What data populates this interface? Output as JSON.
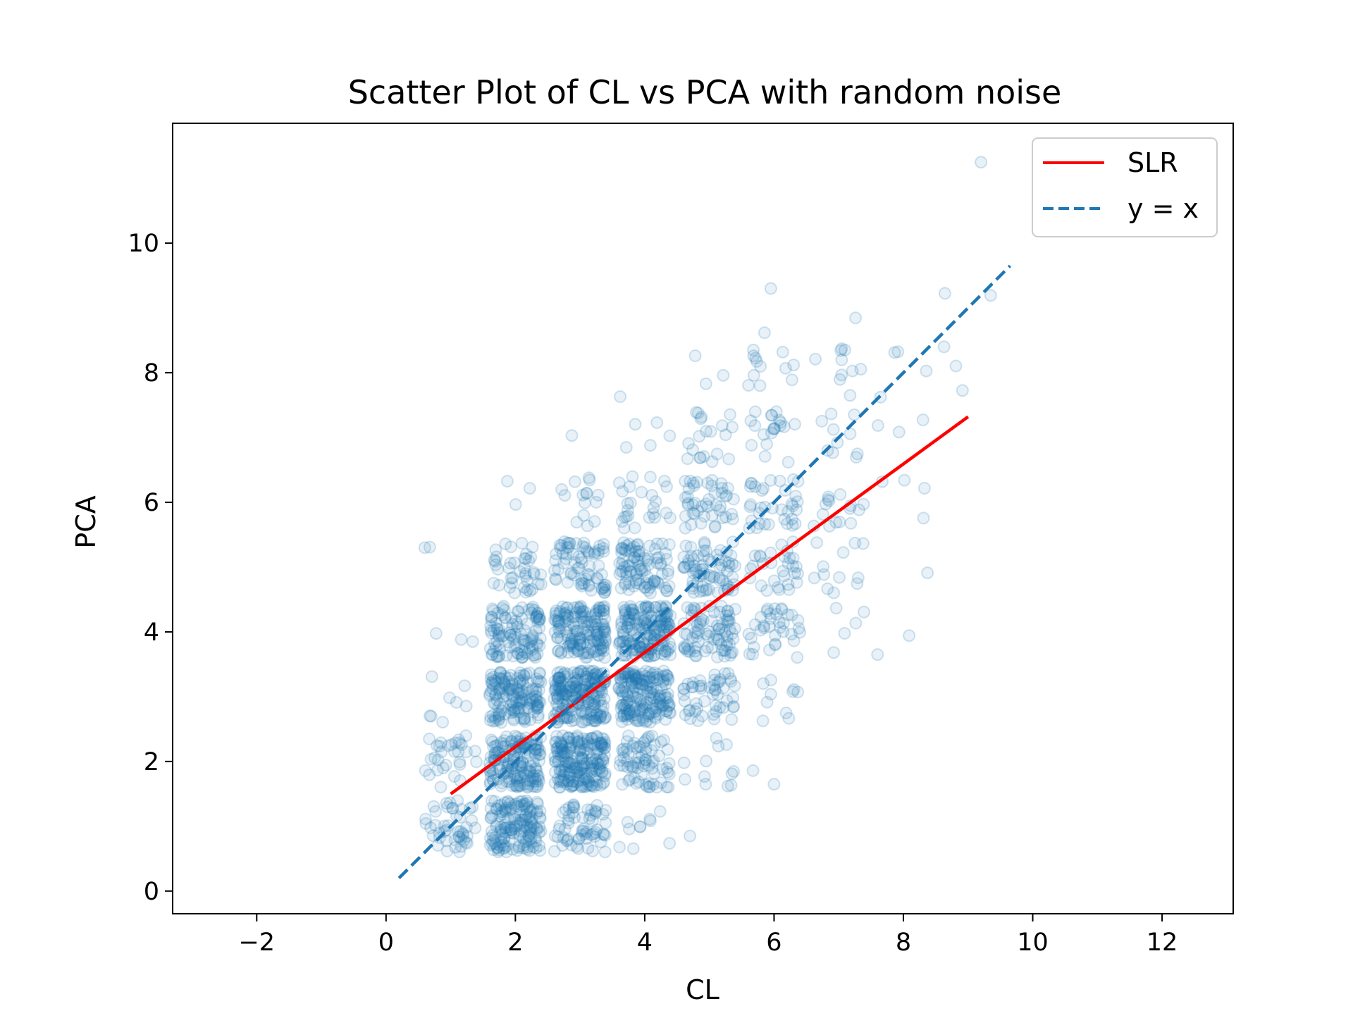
{
  "chart_data": {
    "type": "scatter",
    "title": "Scatter Plot of CL vs PCA with random noise",
    "xlabel": "CL",
    "ylabel": "PCA",
    "xlim": [
      -3.3,
      13.1
    ],
    "ylim": [
      -0.35,
      11.85
    ],
    "xticks": [
      -2,
      0,
      2,
      4,
      6,
      8,
      10,
      12
    ],
    "yticks": [
      0,
      2,
      4,
      6,
      8,
      10
    ],
    "xtick_labels": [
      "−2",
      "0",
      "2",
      "4",
      "6",
      "8",
      "10",
      "12"
    ],
    "ytick_labels": [
      "0",
      "2",
      "4",
      "6",
      "8",
      "10"
    ],
    "grid": false,
    "legend": {
      "position": "top-right",
      "entries": [
        "SLR",
        "y = x"
      ]
    },
    "colors": {
      "points": "#1f77b4",
      "slr": "#ff0000",
      "identity": "#1f77b4"
    },
    "scatter_note": "CL and PCA integer pairs with uniform jitter of about ±0.4; point counts per integer cell estimated from visual density",
    "clusters": [
      {
        "cl": 1,
        "pca": 1,
        "count": 45
      },
      {
        "cl": 1,
        "pca": 2,
        "count": 30
      },
      {
        "cl": 1,
        "pca": 3,
        "count": 8
      },
      {
        "cl": 1,
        "pca": 4,
        "count": 3
      },
      {
        "cl": 1,
        "pca": 5,
        "count": 1
      },
      {
        "cl": 2,
        "pca": 1,
        "count": 150
      },
      {
        "cl": 2,
        "pca": 2,
        "count": 160
      },
      {
        "cl": 2,
        "pca": 3,
        "count": 150
      },
      {
        "cl": 2,
        "pca": 4,
        "count": 110
      },
      {
        "cl": 2,
        "pca": 5,
        "count": 40
      },
      {
        "cl": 2,
        "pca": 6,
        "count": 3
      },
      {
        "cl": 3,
        "pca": 1,
        "count": 60
      },
      {
        "cl": 3,
        "pca": 2,
        "count": 200
      },
      {
        "cl": 3,
        "pca": 3,
        "count": 200
      },
      {
        "cl": 3,
        "pca": 4,
        "count": 160
      },
      {
        "cl": 3,
        "pca": 5,
        "count": 70
      },
      {
        "cl": 3,
        "pca": 6,
        "count": 15
      },
      {
        "cl": 3,
        "pca": 7,
        "count": 1
      },
      {
        "cl": 4,
        "pca": 1,
        "count": 10
      },
      {
        "cl": 4,
        "pca": 2,
        "count": 70
      },
      {
        "cl": 4,
        "pca": 3,
        "count": 180
      },
      {
        "cl": 4,
        "pca": 4,
        "count": 170
      },
      {
        "cl": 4,
        "pca": 5,
        "count": 90
      },
      {
        "cl": 4,
        "pca": 6,
        "count": 25
      },
      {
        "cl": 4,
        "pca": 7,
        "count": 5
      },
      {
        "cl": 4,
        "pca": 8,
        "count": 1
      },
      {
        "cl": 5,
        "pca": 2,
        "count": 12
      },
      {
        "cl": 5,
        "pca": 3,
        "count": 50
      },
      {
        "cl": 5,
        "pca": 4,
        "count": 80
      },
      {
        "cl": 5,
        "pca": 5,
        "count": 70
      },
      {
        "cl": 5,
        "pca": 6,
        "count": 45
      },
      {
        "cl": 5,
        "pca": 7,
        "count": 20
      },
      {
        "cl": 5,
        "pca": 8,
        "count": 3
      },
      {
        "cl": 6,
        "pca": 2,
        "count": 1
      },
      {
        "cl": 6,
        "pca": 3,
        "count": 10
      },
      {
        "cl": 6,
        "pca": 4,
        "count": 35
      },
      {
        "cl": 6,
        "pca": 5,
        "count": 30
      },
      {
        "cl": 6,
        "pca": 6,
        "count": 35
      },
      {
        "cl": 6,
        "pca": 7,
        "count": 20
      },
      {
        "cl": 6,
        "pca": 8,
        "count": 12
      },
      {
        "cl": 6,
        "pca": 9,
        "count": 1
      },
      {
        "cl": 7,
        "pca": 4,
        "count": 5
      },
      {
        "cl": 7,
        "pca": 5,
        "count": 12
      },
      {
        "cl": 7,
        "pca": 6,
        "count": 15
      },
      {
        "cl": 7,
        "pca": 7,
        "count": 10
      },
      {
        "cl": 7,
        "pca": 8,
        "count": 10
      },
      {
        "cl": 7,
        "pca": 9,
        "count": 1
      },
      {
        "cl": 8,
        "pca": 4,
        "count": 1
      },
      {
        "cl": 8,
        "pca": 5,
        "count": 1
      },
      {
        "cl": 8,
        "pca": 6,
        "count": 4
      },
      {
        "cl": 8,
        "pca": 7,
        "count": 3
      },
      {
        "cl": 8,
        "pca": 8,
        "count": 4
      },
      {
        "cl": 9,
        "pca": 8,
        "count": 3
      },
      {
        "cl": 9,
        "pca": 9,
        "count": 2
      }
    ],
    "extra_points": [
      {
        "x": 9.2,
        "y": 11.25
      },
      {
        "x": 0.6,
        "y": 5.3
      },
      {
        "x": 5.95,
        "y": 9.3
      },
      {
        "x": 7.6,
        "y": 3.65
      },
      {
        "x": 6.0,
        "y": 1.65
      },
      {
        "x": 4.7,
        "y": 0.85
      }
    ],
    "series": [
      {
        "name": "SLR",
        "type": "line",
        "style": "solid",
        "x": [
          1.0,
          9.0
        ],
        "y": [
          1.5,
          7.32
        ]
      },
      {
        "name": "y = x",
        "type": "line",
        "style": "dashed",
        "x": [
          0.2,
          9.65
        ],
        "y": [
          0.2,
          9.65
        ]
      }
    ]
  }
}
